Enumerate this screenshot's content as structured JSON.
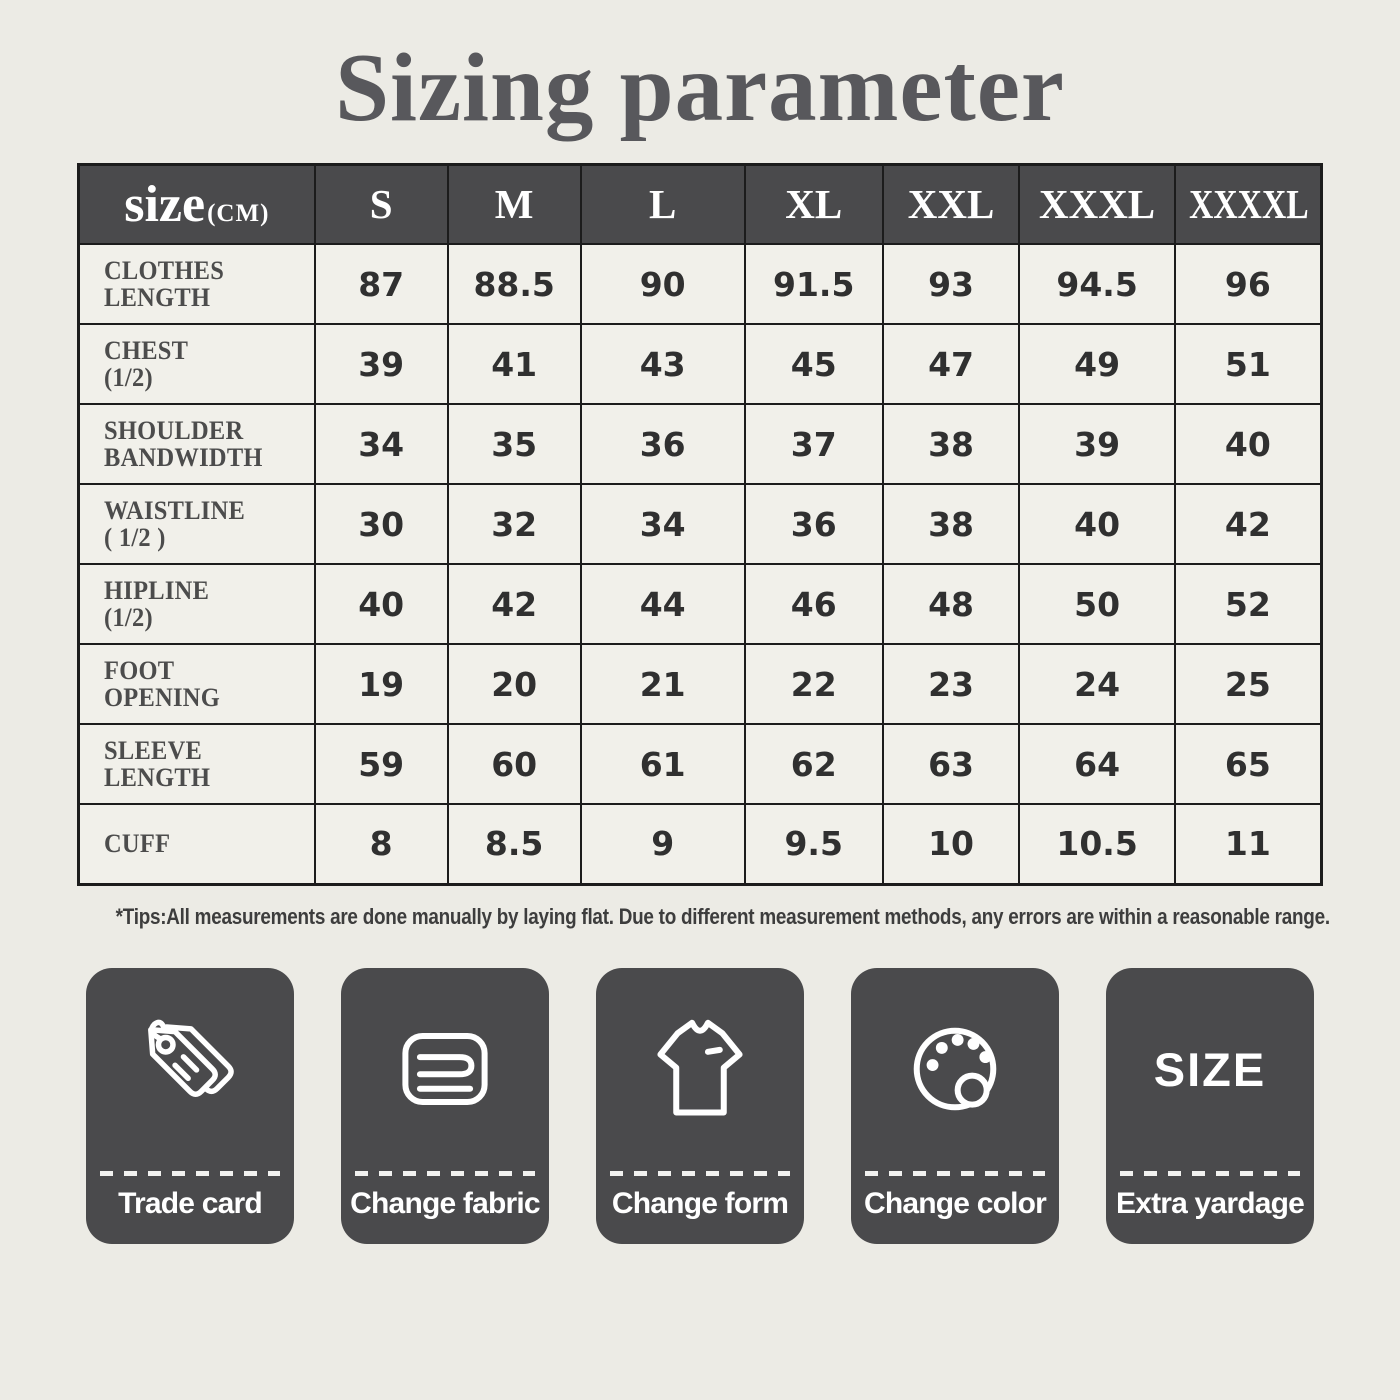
{
  "title": "Sizing parameter",
  "table": {
    "unit_label": "size",
    "unit_suffix": "(CM)",
    "columns": [
      "S",
      "M",
      "L",
      "XL",
      "XXL",
      "XXXL",
      "XXXXL"
    ],
    "rows": [
      {
        "label": [
          "CLOTHES",
          "LENGTH"
        ],
        "values": [
          "87",
          "88.5",
          "90",
          "91.5",
          "93",
          "94.5",
          "96"
        ]
      },
      {
        "label": [
          "CHEST",
          "(1/2)"
        ],
        "values": [
          "39",
          "41",
          "43",
          "45",
          "47",
          "49",
          "51"
        ]
      },
      {
        "label": [
          "SHOULDER",
          "BANDWIDTH"
        ],
        "values": [
          "34",
          "35",
          "36",
          "37",
          "38",
          "39",
          "40"
        ]
      },
      {
        "label": [
          "WAISTLINE",
          "( 1/2 )"
        ],
        "values": [
          "30",
          "32",
          "34",
          "36",
          "38",
          "40",
          "42"
        ]
      },
      {
        "label": [
          "HIPLINE",
          "(1/2)"
        ],
        "values": [
          "40",
          "42",
          "44",
          "46",
          "48",
          "50",
          "52"
        ]
      },
      {
        "label": [
          "FOOT",
          "OPENING"
        ],
        "values": [
          "19",
          "20",
          "21",
          "22",
          "23",
          "24",
          "25"
        ]
      },
      {
        "label": [
          "SLEEVE",
          "LENGTH"
        ],
        "values": [
          "59",
          "60",
          "61",
          "62",
          "63",
          "64",
          "65"
        ]
      },
      {
        "label": [
          "CUFF"
        ],
        "values": [
          "8",
          "8.5",
          "9",
          "9.5",
          "10",
          "10.5",
          "11"
        ]
      }
    ]
  },
  "tips": "*Tips:All measurements are done manually by laying flat. Due to different measurement methods, any errors are within a reasonable range.",
  "tiles": [
    {
      "icon": "price-tags-icon",
      "label": "Trade card"
    },
    {
      "icon": "folded-fabric-icon",
      "label": "Change fabric"
    },
    {
      "icon": "tshirt-icon",
      "label": "Change form"
    },
    {
      "icon": "palette-icon",
      "label": "Change color"
    },
    {
      "icon": "size-text-icon",
      "label": "Extra yardage",
      "icon_text": "SIZE"
    }
  ],
  "colors": {
    "page_bg": "#ECEBE5",
    "cell_bg": "#F1F0EA",
    "dark": "#4A4A4C",
    "line": "#1C1C1C",
    "title_color": "#58585C",
    "label_color": "#4C4C4C",
    "value_color": "#303030",
    "tips_color": "#3D3D3D",
    "icon_stroke": "#FFFFFF"
  }
}
